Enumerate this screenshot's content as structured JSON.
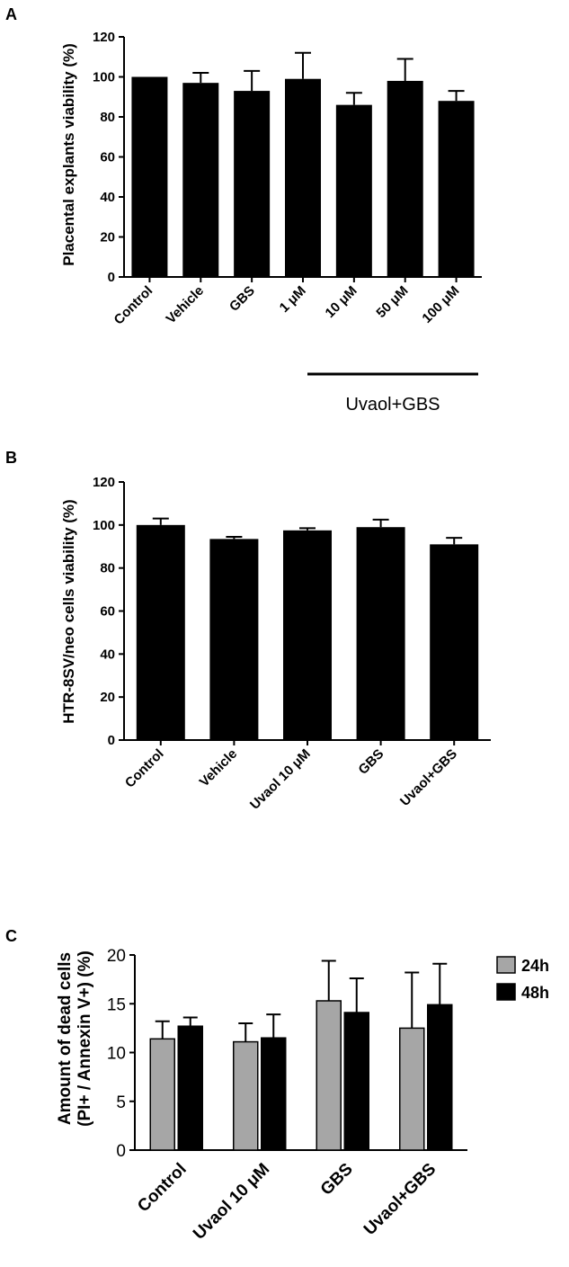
{
  "chart_data": [
    {
      "panel": "A",
      "type": "bar",
      "ylabel": "Placental explants viability (%)",
      "ylim": [
        0,
        120
      ],
      "yticks": [
        "0",
        "20",
        "40",
        "60",
        "80",
        "100",
        "120"
      ],
      "categories": [
        "Control",
        "Vehicle",
        "GBS",
        "1 μM",
        "10 μM",
        "50 μM",
        "100 μM"
      ],
      "values": [
        100,
        97,
        93,
        99,
        86,
        98,
        88
      ],
      "errors": [
        0,
        5,
        10,
        13,
        6,
        11,
        5
      ],
      "bar_color": "#000000",
      "bracket_label": "Uvaol+GBS"
    },
    {
      "panel": "B",
      "type": "bar",
      "ylabel": "HTR-8SV/neo cells viability (%)",
      "ylim": [
        0,
        120
      ],
      "yticks": [
        "0",
        "20",
        "40",
        "60",
        "80",
        "100",
        "120"
      ],
      "categories": [
        "Control",
        "Vehicle",
        "Uvaol 10 μM",
        "GBS",
        "Uvaol+GBS"
      ],
      "values": [
        100,
        93.5,
        97.5,
        99,
        91
      ],
      "errors": [
        3,
        1,
        1,
        3.5,
        3
      ],
      "bar_color": "#000000"
    },
    {
      "panel": "C",
      "type": "bar",
      "ylabel_line1": "Amount of dead cells",
      "ylabel_line2": "(PI+ / Annexin  V+) (%)",
      "ylim": [
        0,
        20
      ],
      "yticks": [
        "0",
        "5",
        "10",
        "15",
        "20"
      ],
      "categories": [
        "Control",
        "Uvaol 10 μM",
        "GBS",
        "Uvaol+GBS"
      ],
      "series": [
        {
          "name": "24h",
          "color": "#a6a6a6",
          "values": [
            11.4,
            11.1,
            15.3,
            12.5
          ],
          "errors": [
            1.8,
            1.9,
            4.1,
            5.7
          ]
        },
        {
          "name": "48h",
          "color": "#000000",
          "values": [
            12.7,
            11.5,
            14.1,
            14.9
          ],
          "errors": [
            0.9,
            2.4,
            3.5,
            4.2
          ]
        }
      ],
      "legend_placement": "top-right"
    }
  ]
}
